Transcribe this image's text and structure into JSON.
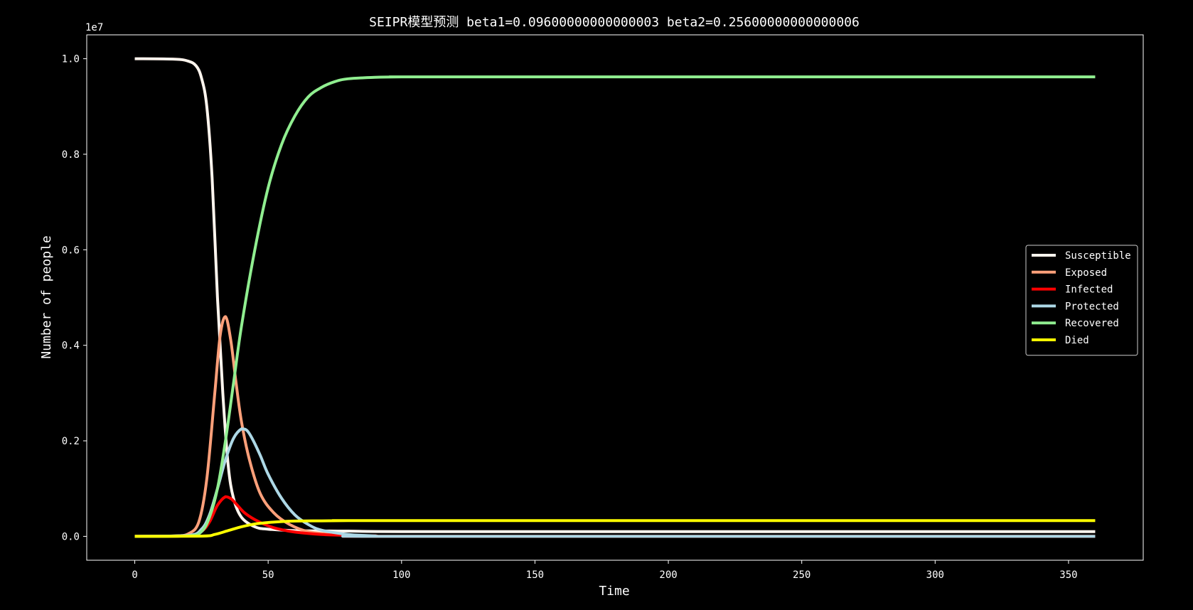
{
  "chart_data": {
    "type": "line",
    "title": "SEIPR模型预测 beta1=0.09600000000000003 beta2=0.25600000000000006",
    "xlabel": "Time",
    "ylabel": "Number of people",
    "y_offset_label": "1e7",
    "xlim": [
      -18,
      378
    ],
    "ylim": [
      -0.05,
      1.05
    ],
    "y_scale_factor": 10000000,
    "x_ticks": [
      0,
      50,
      100,
      150,
      200,
      250,
      300,
      350
    ],
    "y_ticks": [
      0.0,
      0.2,
      0.4,
      0.6,
      0.8,
      1.0
    ],
    "y_tick_labels": [
      "0.0",
      "0.2",
      "0.4",
      "0.6",
      "0.8",
      "1.0"
    ],
    "x_tick_labels": [
      "0",
      "50",
      "100",
      "150",
      "200",
      "250",
      "300",
      "350"
    ],
    "grid": false,
    "legend_position": "center-right",
    "series": [
      {
        "name": "Susceptible",
        "color": "#fff5ee",
        "x": [
          0,
          15,
          20,
          23,
          25,
          27,
          29,
          31,
          33,
          35,
          37,
          40,
          45,
          50,
          60,
          80,
          100,
          200,
          360
        ],
        "values": [
          1.0,
          0.999,
          0.995,
          0.985,
          0.96,
          0.9,
          0.75,
          0.5,
          0.3,
          0.15,
          0.08,
          0.04,
          0.02,
          0.015,
          0.012,
          0.011,
          0.01,
          0.01,
          0.01
        ]
      },
      {
        "name": "Exposed",
        "color": "#ffa07a",
        "x": [
          0,
          15,
          20,
          24,
          27,
          30,
          32,
          34,
          36,
          38,
          40,
          43,
          47,
          52,
          58,
          65,
          75,
          90,
          110,
          360
        ],
        "values": [
          0.0,
          0.001,
          0.005,
          0.03,
          0.12,
          0.3,
          0.42,
          0.46,
          0.41,
          0.32,
          0.24,
          0.16,
          0.09,
          0.05,
          0.025,
          0.01,
          0.004,
          0.001,
          0.0,
          0.0
        ]
      },
      {
        "name": "Infected",
        "color": "#ff0000",
        "x": [
          0,
          20,
          25,
          28,
          31,
          34,
          36,
          38,
          41,
          45,
          50,
          55,
          60,
          70,
          80,
          90,
          100,
          360
        ],
        "values": [
          0.0,
          0.001,
          0.01,
          0.03,
          0.065,
          0.083,
          0.079,
          0.068,
          0.05,
          0.035,
          0.022,
          0.014,
          0.009,
          0.004,
          0.002,
          0.001,
          0.0,
          0.0
        ]
      },
      {
        "name": "Protected",
        "color": "#add8e6",
        "x": [
          0,
          20,
          25,
          28,
          31,
          34,
          37,
          40,
          42,
          44,
          47,
          50,
          55,
          60,
          65,
          70,
          80,
          90,
          100,
          360
        ],
        "values": [
          0.0,
          0.002,
          0.015,
          0.045,
          0.1,
          0.16,
          0.205,
          0.225,
          0.222,
          0.205,
          0.17,
          0.13,
          0.08,
          0.045,
          0.025,
          0.013,
          0.004,
          0.001,
          0.0,
          0.0
        ]
      },
      {
        "name": "Recovered",
        "color": "#90ee90",
        "x": [
          0,
          20,
          25,
          28,
          31,
          34,
          37,
          40,
          45,
          50,
          55,
          60,
          65,
          70,
          75,
          80,
          90,
          100,
          120,
          360
        ],
        "values": [
          0.0,
          0.001,
          0.01,
          0.04,
          0.1,
          0.2,
          0.32,
          0.44,
          0.6,
          0.73,
          0.82,
          0.88,
          0.92,
          0.94,
          0.952,
          0.958,
          0.961,
          0.962,
          0.962,
          0.962
        ]
      },
      {
        "name": "Died",
        "color": "#ffff00",
        "x": [
          0,
          25,
          30,
          35,
          40,
          45,
          50,
          55,
          60,
          70,
          80,
          100,
          360
        ],
        "values": [
          0.0,
          0.0005,
          0.004,
          0.012,
          0.02,
          0.026,
          0.029,
          0.031,
          0.032,
          0.0325,
          0.033,
          0.033,
          0.033
        ]
      }
    ]
  }
}
